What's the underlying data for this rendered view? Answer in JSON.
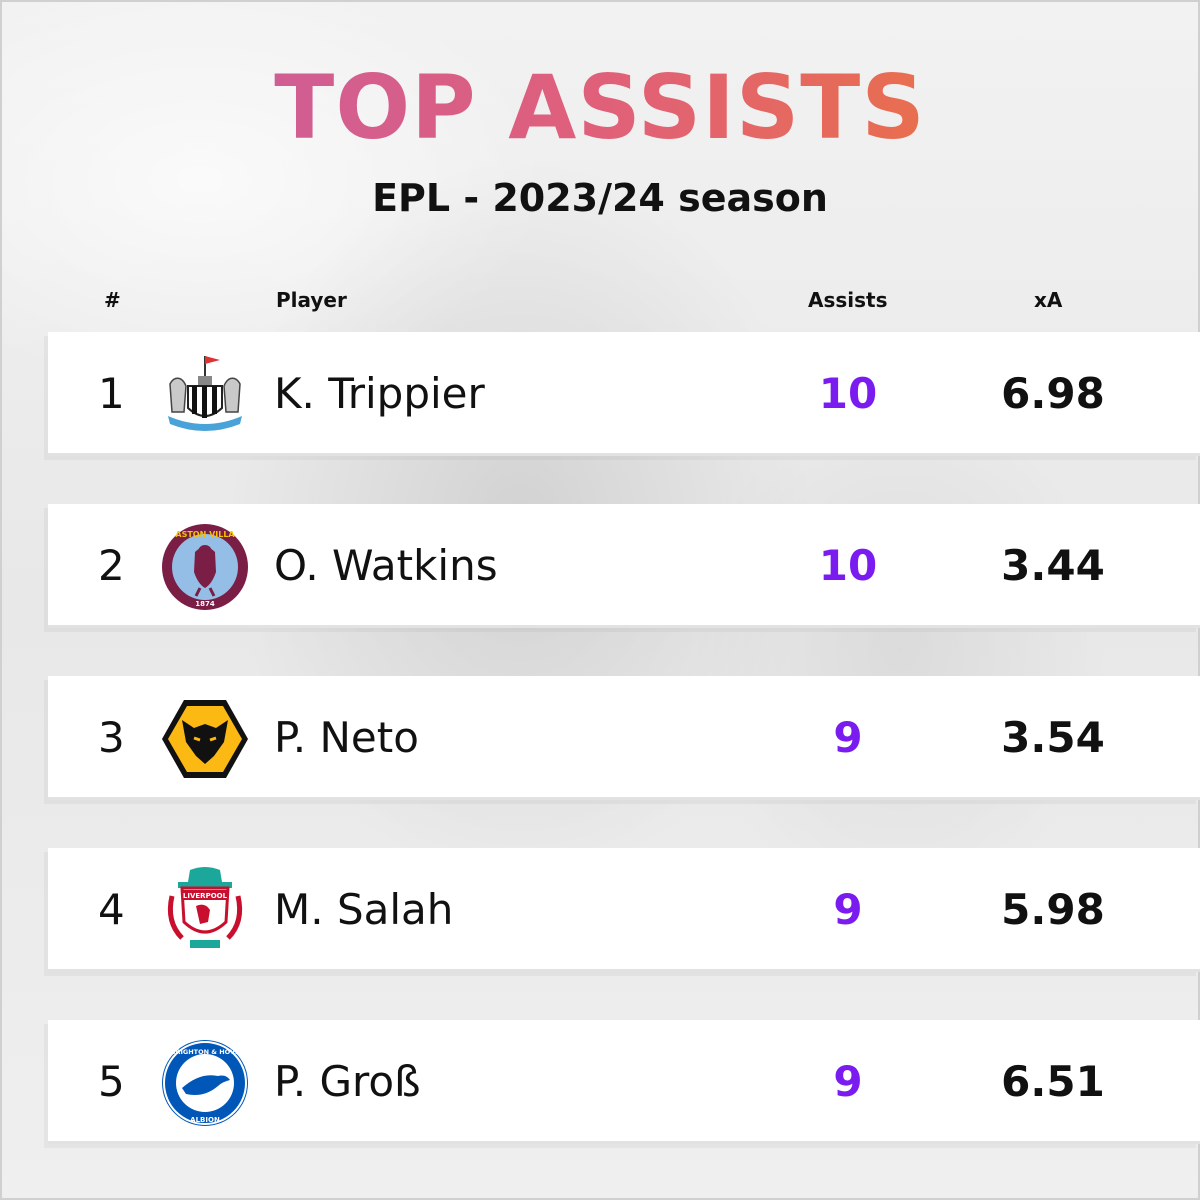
{
  "header": {
    "title": "TOP ASSISTS",
    "subtitle": "EPL - 2023/24 season"
  },
  "columns": {
    "rank": "#",
    "player": "Player",
    "assists": "Assists",
    "xa": "xA"
  },
  "rows": [
    {
      "rank": "1",
      "player": "K. Trippier",
      "assists": "10",
      "xa": "6.98",
      "crest": "newcastle-united-crest-icon"
    },
    {
      "rank": "2",
      "player": "O. Watkins",
      "assists": "10",
      "xa": "3.44",
      "crest": "aston-villa-crest-icon",
      "crest_text": "ASTON VILLA",
      "crest_year": "1874"
    },
    {
      "rank": "3",
      "player": "P. Neto",
      "assists": "9",
      "xa": "3.54",
      "crest": "wolves-crest-icon"
    },
    {
      "rank": "4",
      "player": "M. Salah",
      "assists": "9",
      "xa": "5.98",
      "crest": "liverpool-crest-icon",
      "crest_text": "LIVERPOOL"
    },
    {
      "rank": "5",
      "player": "P. Groß",
      "assists": "9",
      "xa": "6.51",
      "crest": "brighton-crest-icon",
      "crest_text": "BRIGHTON & HOVE",
      "crest_text2": "ALBION"
    }
  ],
  "colors": {
    "title_gradient": [
      "#c35aa8",
      "#e0607a",
      "#f07a2a"
    ],
    "assists": "#7a1cf0",
    "text": "#111111"
  }
}
